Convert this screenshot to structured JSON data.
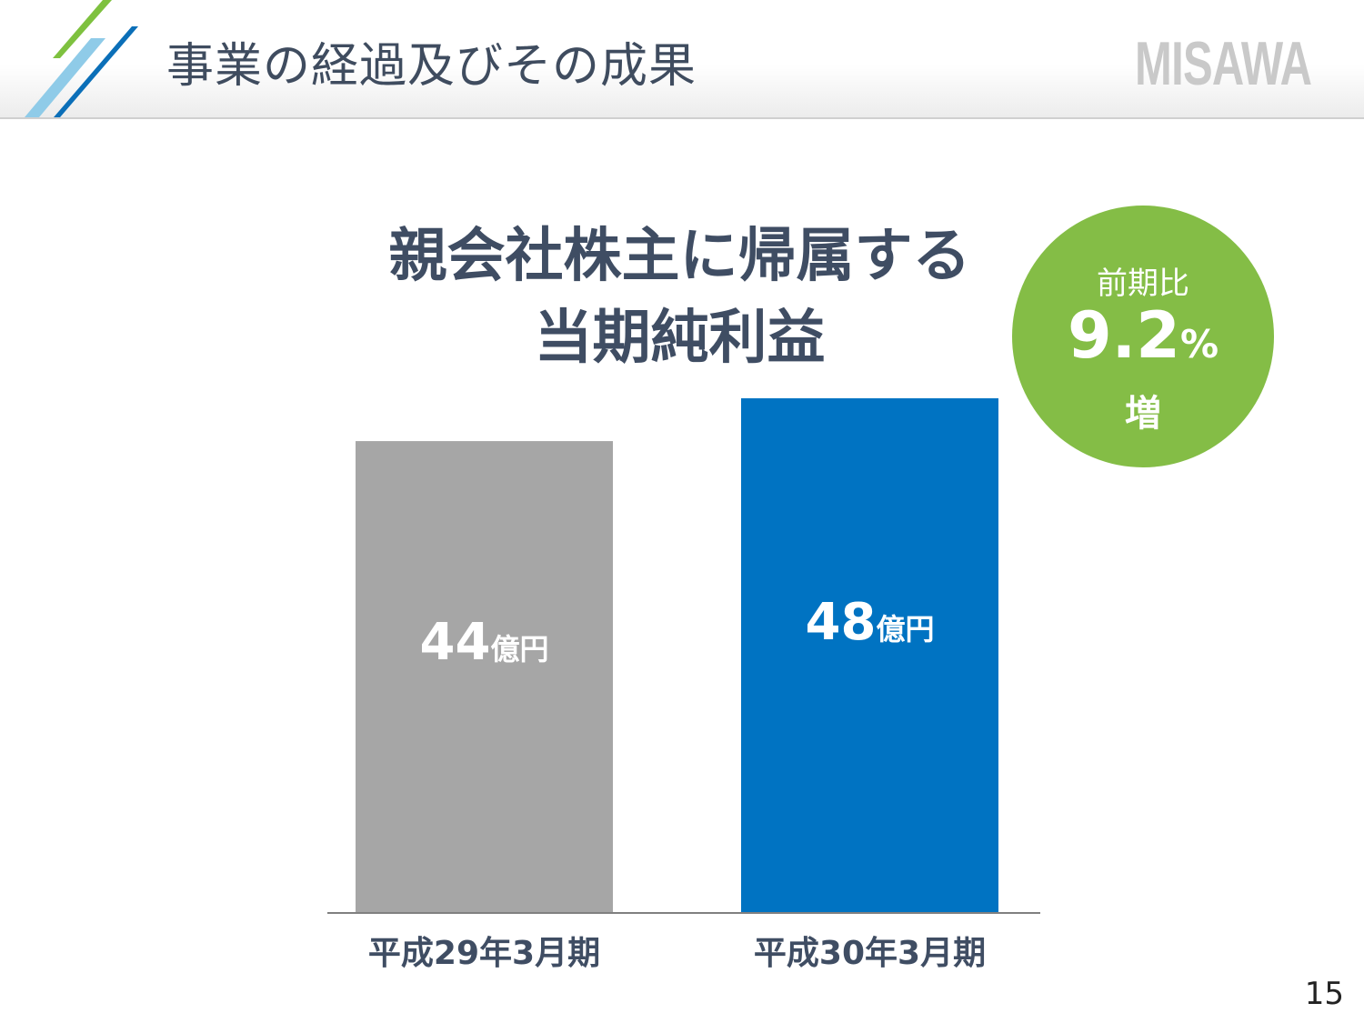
{
  "header": {
    "title": "事業の経過及びその成果",
    "logo": "MISAWA"
  },
  "badge": {
    "label": "前期比",
    "value": "9.2",
    "unit": "%",
    "suffix": "増"
  },
  "page_number": "15",
  "colors": {
    "accent_green": "#84bd46",
    "bar_prev": "#a6a6a6",
    "bar_curr": "#0073c2",
    "title": "#3f4d63"
  },
  "chart_data": {
    "type": "bar",
    "title": [
      "親会社株主に帰属する",
      "当期純利益"
    ],
    "categories": [
      "平成29年3月期",
      "平成30年3月期"
    ],
    "values": [
      44,
      48
    ],
    "value_labels": [
      "44",
      "48"
    ],
    "unit_label": "億円",
    "ylim": [
      0,
      48
    ],
    "xlabel": "",
    "ylabel": "",
    "grid": false
  }
}
